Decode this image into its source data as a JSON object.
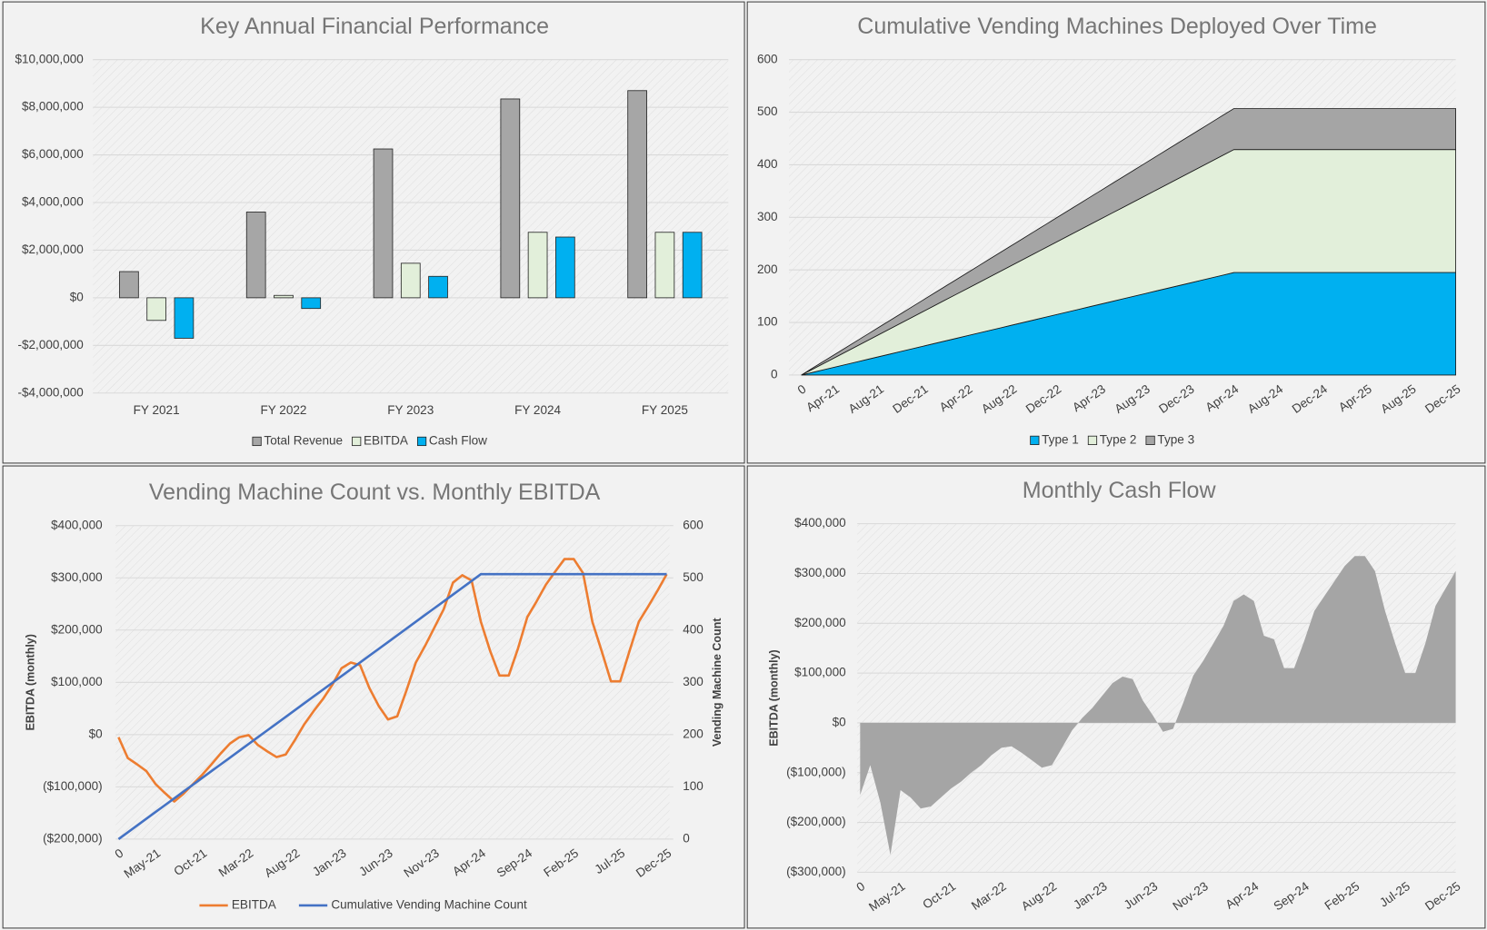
{
  "chart_data": [
    {
      "type": "bar",
      "title": "Key Annual Financial Performance",
      "categories": [
        "FY 2021",
        "FY 2022",
        "FY 2023",
        "FY 2024",
        "FY 2025"
      ],
      "series": [
        {
          "name": "Total Revenue",
          "color": "#a6a6a6",
          "values": [
            1100000,
            3600000,
            6250000,
            8350000,
            8700000
          ]
        },
        {
          "name": "EBITDA",
          "color": "#e2efda",
          "values": [
            -950000,
            100000,
            1450000,
            2750000,
            2750000
          ]
        },
        {
          "name": "Cash Flow",
          "color": "#00b0f0",
          "values": [
            -1700000,
            -450000,
            900000,
            2550000,
            2750000
          ]
        }
      ],
      "ylim": [
        -4000000,
        10000000
      ],
      "yticks": [
        {
          "value": -4000000,
          "label": "-$4,000,000"
        },
        {
          "value": -2000000,
          "label": "-$2,000,000"
        },
        {
          "value": 0,
          "label": "$0"
        },
        {
          "value": 2000000,
          "label": "$2,000,000"
        },
        {
          "value": 4000000,
          "label": "$4,000,000"
        },
        {
          "value": 6000000,
          "label": "$6,000,000"
        },
        {
          "value": 8000000,
          "label": "$8,000,000"
        },
        {
          "value": 10000000,
          "label": "$10,000,000"
        }
      ],
      "grid": true
    },
    {
      "type": "area",
      "stacked": true,
      "title": "Cumulative Vending Machines Deployed Over Time",
      "categories": [
        "0",
        null,
        null,
        "Apr-21",
        null,
        null,
        null,
        "Aug-21",
        null,
        null,
        null,
        "Dec-21",
        null,
        null,
        null,
        "Apr-22",
        null,
        null,
        null,
        "Aug-22",
        null,
        null,
        null,
        "Dec-22",
        null,
        null,
        null,
        "Apr-23",
        null,
        null,
        null,
        "Aug-23",
        null,
        null,
        null,
        "Dec-23",
        null,
        null,
        null,
        "Apr-24",
        null,
        null,
        null,
        "Aug-24",
        null,
        null,
        null,
        "Dec-24",
        null,
        null,
        null,
        "Apr-25",
        null,
        null,
        null,
        "Aug-25",
        null,
        null,
        null,
        "Dec-25"
      ],
      "series": [
        {
          "name": "Type 1",
          "color": "#00b0f0",
          "values": [
            0,
            5,
            10,
            15,
            20,
            25,
            30,
            35,
            40,
            45,
            50,
            55,
            60,
            65,
            70,
            75,
            80,
            85,
            90,
            95,
            100,
            105,
            110,
            115,
            120,
            125,
            130,
            135,
            140,
            145,
            150,
            155,
            160,
            165,
            170,
            175,
            180,
            185,
            190,
            195,
            195,
            195,
            195,
            195,
            195,
            195,
            195,
            195,
            195,
            195,
            195,
            195,
            195,
            195,
            195,
            195,
            195,
            195,
            195,
            195
          ]
        },
        {
          "name": "Type 2",
          "color": "#e2efda",
          "values": [
            0,
            6,
            12,
            18,
            24,
            30,
            36,
            42,
            48,
            54,
            60,
            66,
            72,
            78,
            84,
            90,
            96,
            102,
            108,
            114,
            120,
            126,
            132,
            138,
            144,
            150,
            156,
            162,
            168,
            174,
            180,
            186,
            192,
            198,
            204,
            210,
            216,
            222,
            228,
            234,
            234,
            234,
            234,
            234,
            234,
            234,
            234,
            234,
            234,
            234,
            234,
            234,
            234,
            234,
            234,
            234,
            234,
            234,
            234,
            234
          ]
        },
        {
          "name": "Type 3",
          "color": "#a5a5a5",
          "values": [
            0,
            2,
            4,
            6,
            8,
            10,
            12,
            14,
            16,
            18,
            20,
            22,
            24,
            26,
            28,
            30,
            32,
            34,
            36,
            38,
            40,
            42,
            44,
            46,
            48,
            50,
            52,
            54,
            56,
            58,
            60,
            62,
            64,
            66,
            68,
            70,
            72,
            74,
            76,
            78,
            78,
            78,
            78,
            78,
            78,
            78,
            78,
            78,
            78,
            78,
            78,
            78,
            78,
            78,
            78,
            78,
            78,
            78,
            78,
            78
          ]
        }
      ],
      "ylim": [
        0,
        600
      ],
      "yticks": [
        0,
        100,
        200,
        300,
        400,
        500,
        600
      ],
      "grid": true
    },
    {
      "type": "line",
      "title": "Vending Machine Count vs. Monthly EBITDA",
      "ylabel": "EBITDA (monthly)",
      "y2label": "Vending Machine Count",
      "categories": [
        "0",
        null,
        null,
        null,
        "May-21",
        null,
        null,
        null,
        null,
        "Oct-21",
        null,
        null,
        null,
        null,
        "Mar-22",
        null,
        null,
        null,
        null,
        "Aug-22",
        null,
        null,
        null,
        null,
        "Jan-23",
        null,
        null,
        null,
        null,
        "Jun-23",
        null,
        null,
        null,
        null,
        "Nov-23",
        null,
        null,
        null,
        null,
        "Apr-24",
        null,
        null,
        null,
        null,
        "Sep-24",
        null,
        null,
        null,
        null,
        "Feb-25",
        null,
        null,
        null,
        null,
        "Jul-25",
        null,
        null,
        null,
        null,
        "Dec-25"
      ],
      "series": [
        {
          "name": "EBITDA",
          "color": "#ed7d31",
          "values": [
            -5000,
            -45000,
            -57000,
            -70000,
            -95000,
            -112000,
            -128000,
            -113000,
            -95000,
            -77000,
            -57000,
            -36000,
            -17000,
            -5000,
            -1000,
            -20000,
            -32000,
            -43000,
            -38000,
            -10000,
            20000,
            45000,
            68000,
            95000,
            127000,
            138000,
            133000,
            89000,
            55000,
            29000,
            35000,
            85000,
            138000,
            170000,
            205000,
            240000,
            291000,
            305000,
            295000,
            216000,
            160000,
            113000,
            113000,
            165000,
            225000,
            255000,
            287000,
            312000,
            336000,
            336000,
            309000,
            216000,
            160000,
            102000,
            102000,
            160000,
            216000,
            245000,
            275000,
            307000
          ]
        },
        {
          "name": "Cumulative Vending Machine Count",
          "color": "#4472c4",
          "axis": "y2",
          "values": [
            0,
            13,
            26,
            39,
            52,
            65,
            78,
            91,
            104,
            117,
            130,
            143,
            156,
            169,
            182,
            195,
            208,
            221,
            234,
            247,
            260,
            273,
            286,
            299,
            312,
            325,
            338,
            351,
            364,
            377,
            390,
            403,
            416,
            429,
            442,
            455,
            468,
            481,
            494,
            507,
            507,
            507,
            507,
            507,
            507,
            507,
            507,
            507,
            507,
            507,
            507,
            507,
            507,
            507,
            507,
            507,
            507,
            507,
            507,
            507
          ]
        }
      ],
      "ylim": [
        -200000,
        400000
      ],
      "yticks": [
        {
          "value": -200000,
          "label": "($200,000)"
        },
        {
          "value": -100000,
          "label": "($100,000)"
        },
        {
          "value": 0,
          "label": "$0"
        },
        {
          "value": 100000,
          "label": "$100,000"
        },
        {
          "value": 200000,
          "label": "$200,000"
        },
        {
          "value": 300000,
          "label": "$300,000"
        },
        {
          "value": 400000,
          "label": "$400,000"
        }
      ],
      "y2lim": [
        0,
        600
      ],
      "y2ticks": [
        0,
        100,
        200,
        300,
        400,
        500,
        600
      ],
      "grid": true
    },
    {
      "type": "area",
      "title": "Monthly Cash Flow",
      "ylabel": "EBITDA (monthly)",
      "categories": [
        "0",
        null,
        null,
        null,
        "May-21",
        null,
        null,
        null,
        null,
        "Oct-21",
        null,
        null,
        null,
        null,
        "Mar-22",
        null,
        null,
        null,
        null,
        "Aug-22",
        null,
        null,
        null,
        null,
        "Jan-23",
        null,
        null,
        null,
        null,
        "Jun-23",
        null,
        null,
        null,
        null,
        "Nov-23",
        null,
        null,
        null,
        null,
        "Apr-24",
        null,
        null,
        null,
        null,
        "Sep-24",
        null,
        null,
        null,
        null,
        "Feb-25",
        null,
        null,
        null,
        null,
        "Jul-25",
        null,
        null,
        null,
        null,
        "Dec-25"
      ],
      "color": "#a5a5a5",
      "values": [
        -145000,
        -85000,
        -160000,
        -265000,
        -135000,
        -150000,
        -172000,
        -168000,
        -150000,
        -132000,
        -118000,
        -100000,
        -85000,
        -65000,
        -50000,
        -47000,
        -60000,
        -75000,
        -90000,
        -85000,
        -50000,
        -15000,
        10000,
        30000,
        55000,
        80000,
        93000,
        88000,
        45000,
        15000,
        -18000,
        -12000,
        40000,
        95000,
        125000,
        160000,
        195000,
        245000,
        258000,
        245000,
        175000,
        168000,
        110000,
        110000,
        165000,
        225000,
        255000,
        285000,
        315000,
        335000,
        335000,
        305000,
        225000,
        160000,
        100000,
        100000,
        160000,
        235000,
        270000,
        305000
      ],
      "ylim": [
        -300000,
        400000
      ],
      "yticks": [
        {
          "value": -300000,
          "label": "($300,000)"
        },
        {
          "value": -200000,
          "label": "($200,000)"
        },
        {
          "value": -100000,
          "label": "($100,000)"
        },
        {
          "value": 0,
          "label": "$0"
        },
        {
          "value": 100000,
          "label": "$100,000"
        },
        {
          "value": 200000,
          "label": "$200,000"
        },
        {
          "value": 300000,
          "label": "$300,000"
        },
        {
          "value": 400000,
          "label": "$400,000"
        }
      ],
      "grid": true
    }
  ]
}
